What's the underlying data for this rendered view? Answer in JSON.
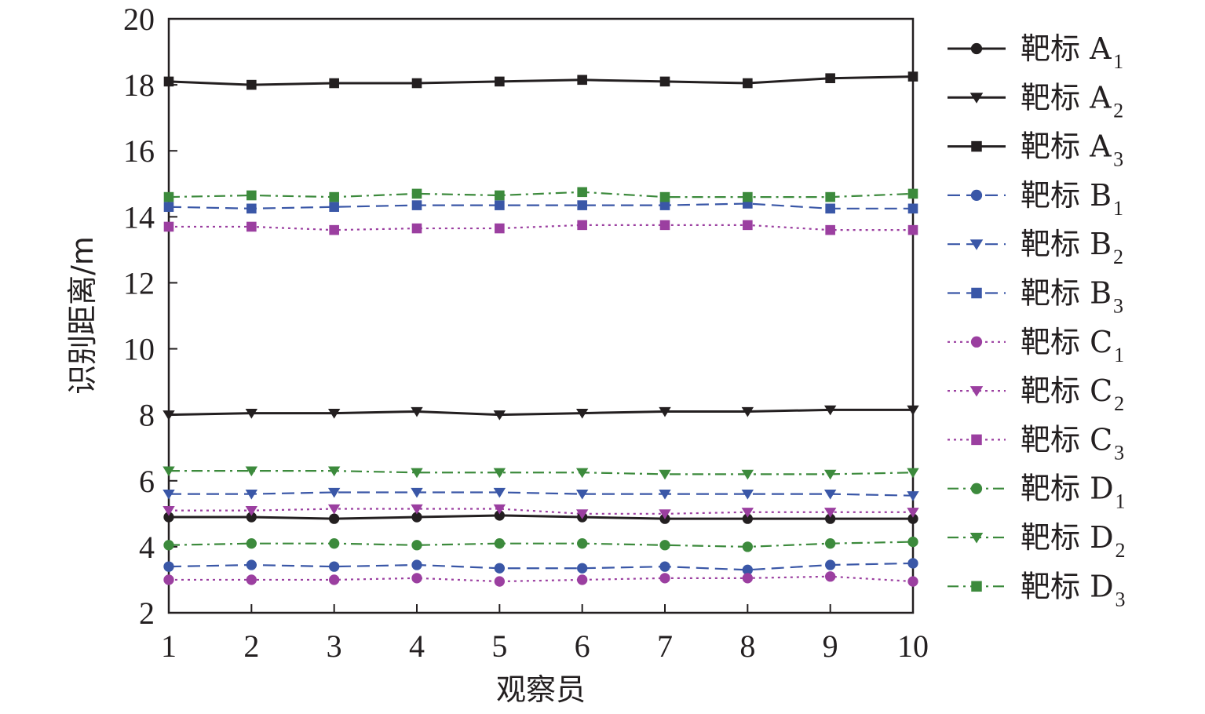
{
  "chart_data": {
    "type": "line",
    "xlabel": "观察员",
    "ylabel": "识别距离/m",
    "x": [
      1,
      2,
      3,
      4,
      5,
      6,
      7,
      8,
      9,
      10
    ],
    "xlim": [
      1,
      10
    ],
    "ylim": [
      2,
      20
    ],
    "yticks": [
      2,
      4,
      6,
      8,
      10,
      12,
      14,
      16,
      18,
      20
    ],
    "xticks": [
      1,
      2,
      3,
      4,
      5,
      6,
      7,
      8,
      9,
      10
    ],
    "grid": false,
    "legend_position": "right",
    "series": [
      {
        "name": "靶标 A",
        "sub": "1",
        "color": "#231f20",
        "marker": "circle",
        "dash": "solid",
        "values": [
          4.9,
          4.9,
          4.85,
          4.9,
          4.95,
          4.9,
          4.85,
          4.85,
          4.85,
          4.85
        ]
      },
      {
        "name": "靶标 A",
        "sub": "2",
        "color": "#231f20",
        "marker": "triangle",
        "dash": "solid",
        "values": [
          8.0,
          8.05,
          8.05,
          8.1,
          8.0,
          8.05,
          8.1,
          8.1,
          8.15,
          8.15
        ]
      },
      {
        "name": "靶标 A",
        "sub": "3",
        "color": "#231f20",
        "marker": "square",
        "dash": "solid",
        "values": [
          18.1,
          18.0,
          18.05,
          18.05,
          18.1,
          18.15,
          18.1,
          18.05,
          18.2,
          18.25
        ]
      },
      {
        "name": "靶标 B",
        "sub": "1",
        "color": "#3a57a7",
        "marker": "circle",
        "dash": "dash",
        "values": [
          3.4,
          3.45,
          3.4,
          3.45,
          3.35,
          3.35,
          3.4,
          3.3,
          3.45,
          3.5
        ]
      },
      {
        "name": "靶标 B",
        "sub": "2",
        "color": "#3a57a7",
        "marker": "triangle",
        "dash": "dash",
        "values": [
          5.6,
          5.6,
          5.65,
          5.65,
          5.65,
          5.6,
          5.6,
          5.6,
          5.6,
          5.55
        ]
      },
      {
        "name": "靶标 B",
        "sub": "3",
        "color": "#3a57a7",
        "marker": "square",
        "dash": "dash",
        "values": [
          14.3,
          14.25,
          14.3,
          14.35,
          14.35,
          14.35,
          14.35,
          14.4,
          14.25,
          14.25
        ]
      },
      {
        "name": "靶标 C",
        "sub": "1",
        "color": "#9b3fa0",
        "marker": "circle",
        "dash": "dot",
        "values": [
          3.0,
          3.0,
          3.0,
          3.05,
          2.95,
          3.0,
          3.05,
          3.05,
          3.1,
          2.95
        ]
      },
      {
        "name": "靶标 C",
        "sub": "2",
        "color": "#9b3fa0",
        "marker": "triangle",
        "dash": "dot",
        "values": [
          5.1,
          5.1,
          5.15,
          5.15,
          5.15,
          5.0,
          5.0,
          5.05,
          5.05,
          5.05
        ]
      },
      {
        "name": "靶标 C",
        "sub": "3",
        "color": "#9b3fa0",
        "marker": "square",
        "dash": "dot",
        "values": [
          13.7,
          13.7,
          13.6,
          13.65,
          13.65,
          13.75,
          13.75,
          13.75,
          13.6,
          13.6
        ]
      },
      {
        "name": "靶标 D",
        "sub": "1",
        "color": "#3c8a3c",
        "marker": "circle",
        "dash": "dashdot",
        "values": [
          4.05,
          4.1,
          4.1,
          4.05,
          4.1,
          4.1,
          4.05,
          4.0,
          4.1,
          4.15
        ]
      },
      {
        "name": "靶标 D",
        "sub": "2",
        "color": "#3c8a3c",
        "marker": "triangle",
        "dash": "dashdot",
        "values": [
          6.3,
          6.3,
          6.3,
          6.25,
          6.25,
          6.25,
          6.2,
          6.2,
          6.2,
          6.25
        ]
      },
      {
        "name": "靶标 D",
        "sub": "3",
        "color": "#3c8a3c",
        "marker": "square",
        "dash": "dashdot",
        "values": [
          14.6,
          14.65,
          14.6,
          14.7,
          14.65,
          14.75,
          14.6,
          14.6,
          14.6,
          14.7
        ]
      }
    ]
  }
}
